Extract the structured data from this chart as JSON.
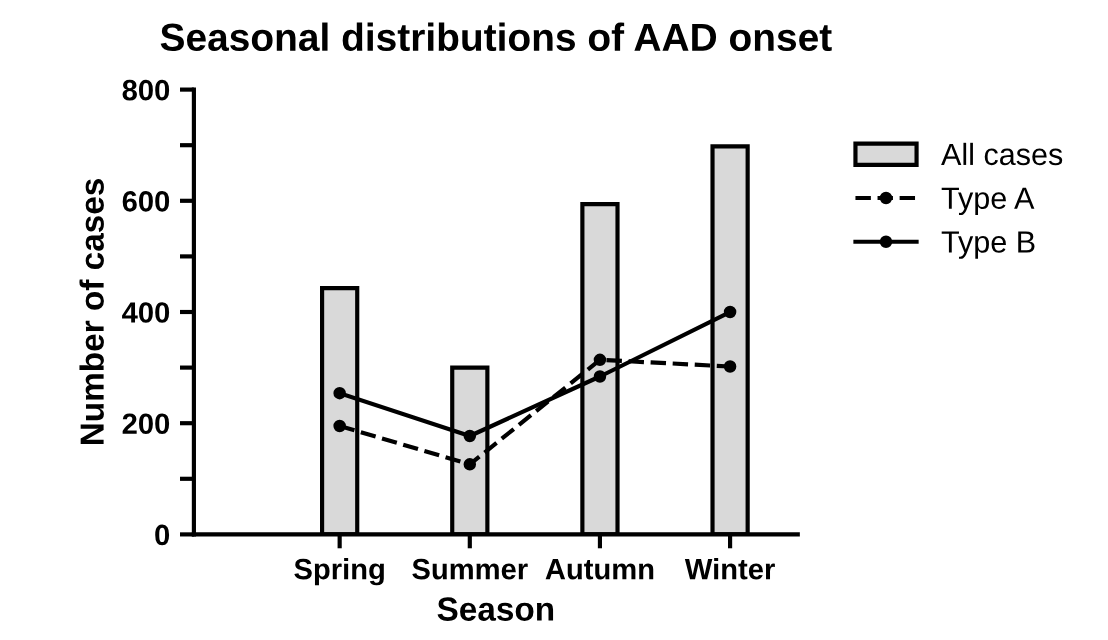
{
  "chart_data": {
    "type": "bar",
    "title": "Seasonal distributions of AAD onset",
    "xlabel": "Season",
    "ylabel": "Number of cases",
    "categories": [
      "Spring",
      "Summer",
      "Autumn",
      "Winter"
    ],
    "series": [
      {
        "name": "All cases",
        "color": "#d9d9d9",
        "values": [
          443,
          300,
          594,
          698
        ]
      },
      {
        "name": "Type A",
        "type": "line",
        "color": "#000000",
        "line_style": "dashed",
        "marker": "circle",
        "values": [
          195,
          126,
          314,
          302
        ]
      },
      {
        "name": "Type B",
        "type": "line",
        "color": "#000000",
        "line_style": "solid",
        "marker": "circle",
        "values": [
          254,
          177,
          284,
          400
        ]
      }
    ],
    "ylim": [
      0,
      800
    ],
    "yticks": [
      0,
      {
        "value": 100,
        "label": null
      },
      200,
      {
        "value": 300,
        "label": null
      },
      400,
      {
        "value": 500,
        "label": null
      },
      600,
      {
        "value": 700,
        "label": null
      },
      800
    ],
    "grid": false,
    "legend": "right"
  }
}
